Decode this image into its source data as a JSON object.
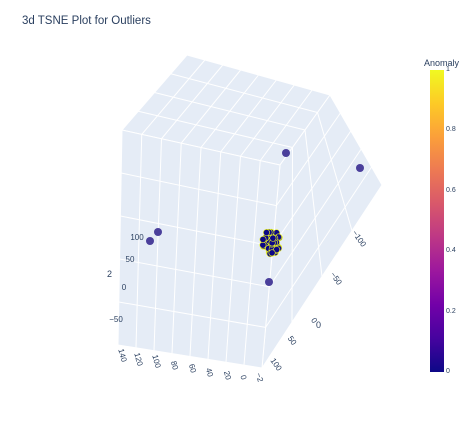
{
  "chart_data": {
    "type": "scatter",
    "dimensions": 3,
    "title": "3d TSNE Plot for Outliers",
    "axis_titles": {
      "x": "0",
      "y": "",
      "z": "2"
    },
    "x_axis_ticks": [
      "140",
      "120",
      "100",
      "80",
      "60",
      "40",
      "20",
      "0",
      "−2"
    ],
    "y_axis_ticks": [
      "−100",
      "−50",
      "0",
      "50",
      "100"
    ],
    "z_axis_ticks": [
      "100",
      "50",
      "0",
      "−50"
    ],
    "colorbar": {
      "title": "Anomaly",
      "range": [
        0,
        1
      ],
      "ticks": [
        "1",
        "0.8",
        "0.6",
        "0.4",
        "0.2",
        "0"
      ],
      "colorscale": [
        "#0d0887",
        "#46039f",
        "#7201a8",
        "#9c179e",
        "#bd3786",
        "#d8576b",
        "#ed7953",
        "#fb9f3a",
        "#fdca26",
        "#f0f921"
      ]
    },
    "points": {
      "outliers": [
        {
          "x": 110,
          "y": -10,
          "z": 105,
          "anomaly": 1
        },
        {
          "x": 125,
          "y": -20,
          "z": 98,
          "anomaly": 1
        },
        {
          "x": 5,
          "y": -60,
          "z": 115,
          "anomaly": 1
        },
        {
          "x": 2,
          "y": -130,
          "z": 70,
          "anomaly": 1
        },
        {
          "x": 40,
          "y": 45,
          "z": -30,
          "anomaly": 1
        }
      ],
      "cluster_center": {
        "x": 55,
        "y": 0,
        "z": 5,
        "anomaly": 0
      },
      "cluster_count": 60
    },
    "marker_colors": {
      "outlier": "#4a3f9b",
      "inlier": "#0d0887",
      "inlier_edge": "#f0f921"
    }
  }
}
